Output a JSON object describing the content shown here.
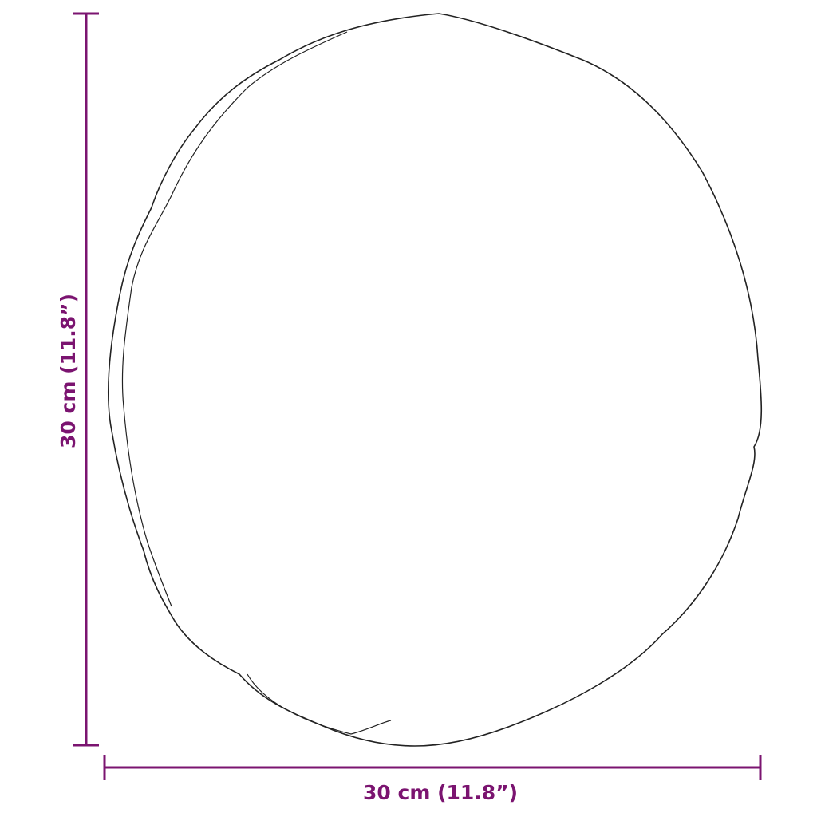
{
  "dimensions": {
    "width_label": "30 cm (11.8”)",
    "height_label": "30 cm (11.8”)"
  },
  "colors": {
    "dimension": "#7b1470",
    "outline": "#222222"
  }
}
